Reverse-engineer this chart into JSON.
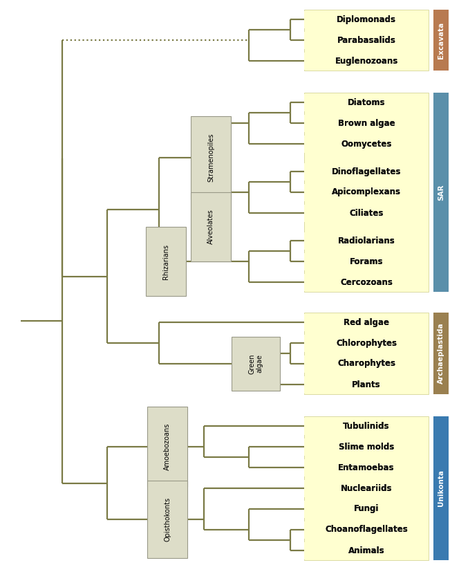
{
  "bg_color": "#ffffff",
  "line_color": "#7a7a45",
  "line_width": 1.6,
  "label_color": "#111111",
  "leaf_bg_color": "#ffffd0",
  "group_label_bg": "#ddddc8",
  "excavata_color": "#b87a50",
  "sar_color": "#5a8faa",
  "archaeplastida_color": "#9a8050",
  "unikonta_color": "#3a7ab0",
  "leaves": [
    "Diplomonads",
    "Parabasalids",
    "Euglenozoans",
    "Diatoms",
    "Brown algae",
    "Oomycetes",
    "Dinoflagellates",
    "Apicomplexans",
    "Ciliates",
    "Radiolarians",
    "Forams",
    "Cercozoans",
    "Red algae",
    "Chlorophytes",
    "Charophytes",
    "Plants",
    "Tubulinids",
    "Slime molds",
    "Entamoebas",
    "Nucleariids",
    "Fungi",
    "Choanoflagellates",
    "Animals"
  ],
  "groups": [
    {
      "name": "Excavata",
      "color": "#b87a50",
      "text_color": "#ffffff",
      "yi": 0,
      "yf": 2
    },
    {
      "name": "SAR",
      "color": "#5a8faa",
      "text_color": "#ffffff",
      "yi": 3,
      "yf": 11
    },
    {
      "name": "Archaeplastida",
      "color": "#9a8050",
      "text_color": "#ffffff",
      "yi": 12,
      "yf": 15
    },
    {
      "name": "Unikonta",
      "color": "#3a7ab0",
      "text_color": "#ffffff",
      "yi": 16,
      "yf": 22
    }
  ]
}
